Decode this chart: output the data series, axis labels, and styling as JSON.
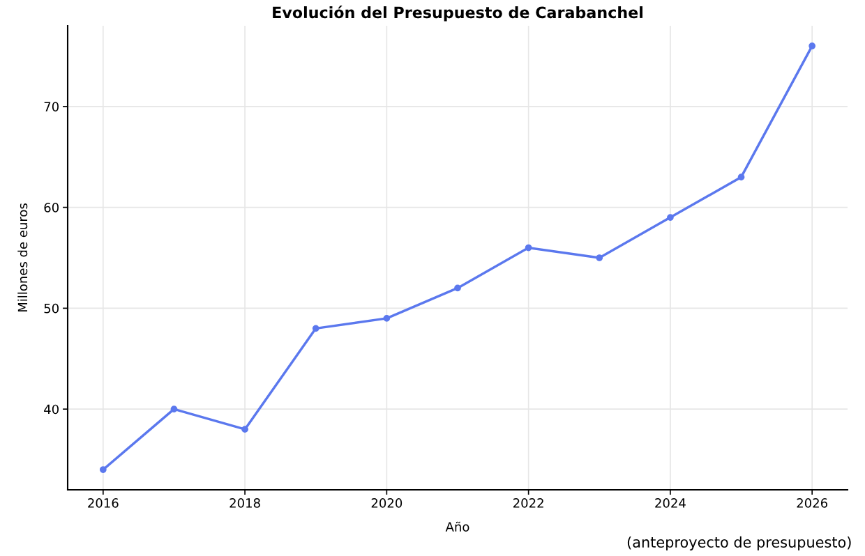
{
  "chart_data": {
    "type": "line",
    "title": "Evolución del Presupuesto de Carabanchel",
    "xlabel": "Año",
    "ylabel": "Millones de euros",
    "x": [
      2016,
      2017,
      2018,
      2019,
      2020,
      2021,
      2022,
      2023,
      2024,
      2025,
      2026
    ],
    "series": [
      {
        "color": "#5b78ee",
        "values": [
          34,
          40,
          38,
          48,
          49,
          52,
          56,
          55,
          59,
          63,
          76
        ]
      }
    ],
    "xlim": [
      2015.5,
      2026.5
    ],
    "xticks": [
      2016,
      2018,
      2020,
      2022,
      2024,
      2026
    ],
    "ylim": [
      32,
      78
    ],
    "yticks": [
      40,
      50,
      60,
      70
    ],
    "grid": true,
    "marker": "circle",
    "line_style": "solid",
    "annotations": [
      "(anteproyecto de presupuesto)"
    ]
  }
}
